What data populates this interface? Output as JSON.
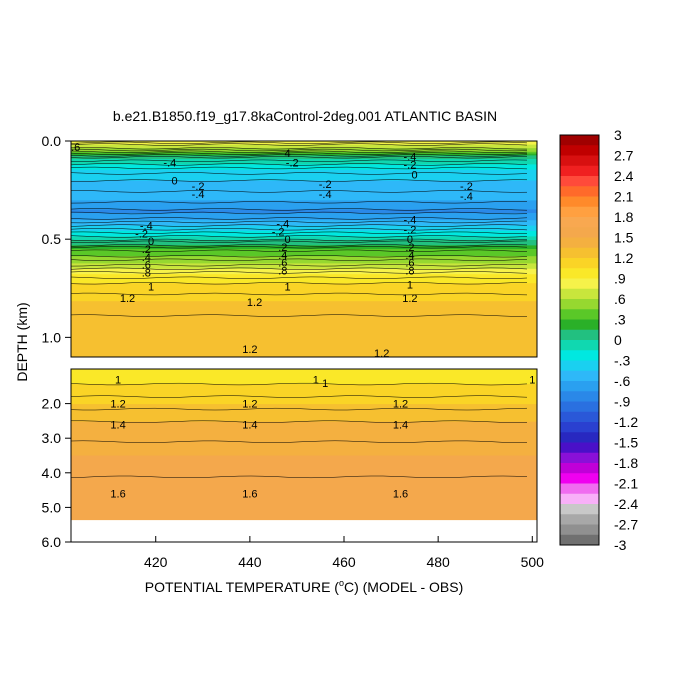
{
  "chart_data": {
    "type": "heatmap",
    "title": "b.e21.B1850.f19_g17.8kaControl-2deg.001 ATLANTIC BASIN",
    "xlabel_prefix": "POTENTIAL TEMPERATURE (",
    "xlabel_degree": "o",
    "xlabel_suffix": "C) (MODEL - OBS)",
    "ylabel": "DEPTH (km)",
    "grid": false,
    "x_range": [
      402,
      501
    ],
    "x_ticks": [
      {
        "value": 420,
        "label": "420"
      },
      {
        "value": 440,
        "label": "440"
      },
      {
        "value": 460,
        "label": "460"
      },
      {
        "value": 480,
        "label": "480"
      },
      {
        "value": 500,
        "label": "500"
      }
    ],
    "upper_panel": {
      "depth_range": [
        0.0,
        1.1
      ],
      "y_ticks": [
        {
          "value": 0.0,
          "label": "0.0"
        },
        {
          "value": 0.5,
          "label": "0.5"
        },
        {
          "value": 1.0,
          "label": "1.0"
        }
      ],
      "profile": [
        {
          "depth": 0.0,
          "value": 0.9
        },
        {
          "depth": 0.04,
          "value": 0.6
        },
        {
          "depth": 0.09,
          "value": 0.0
        },
        {
          "depth": 0.15,
          "value": -0.3
        },
        {
          "depth": 0.22,
          "value": -0.5
        },
        {
          "depth": 0.3,
          "value": -0.6
        },
        {
          "depth": 0.36,
          "value": -0.8
        },
        {
          "depth": 0.42,
          "value": -0.5
        },
        {
          "depth": 0.48,
          "value": -0.2
        },
        {
          "depth": 0.55,
          "value": 0.3
        },
        {
          "depth": 0.62,
          "value": 0.6
        },
        {
          "depth": 0.68,
          "value": 0.9
        },
        {
          "depth": 0.74,
          "value": 1.1
        },
        {
          "depth": 0.82,
          "value": 1.2
        },
        {
          "depth": 0.95,
          "value": 1.3
        },
        {
          "depth": 1.1,
          "value": 1.3
        }
      ],
      "contour_labels": [
        {
          "x": 403,
          "depth": 0.03,
          "text": ".6"
        },
        {
          "x": 423,
          "depth": 0.11,
          "text": "-.4"
        },
        {
          "x": 424,
          "depth": 0.2,
          "text": "0"
        },
        {
          "x": 429,
          "depth": 0.23,
          "text": "-.2"
        },
        {
          "x": 429,
          "depth": 0.27,
          "text": "-.4"
        },
        {
          "x": 448,
          "depth": 0.06,
          "text": "4"
        },
        {
          "x": 449,
          "depth": 0.11,
          "text": "-.2"
        },
        {
          "x": 456,
          "depth": 0.22,
          "text": "-.2"
        },
        {
          "x": 456,
          "depth": 0.27,
          "text": "-.4"
        },
        {
          "x": 474,
          "depth": 0.08,
          "text": "-.4"
        },
        {
          "x": 474,
          "depth": 0.12,
          "text": "-.2"
        },
        {
          "x": 475,
          "depth": 0.17,
          "text": "0"
        },
        {
          "x": 486,
          "depth": 0.23,
          "text": "-.2"
        },
        {
          "x": 486,
          "depth": 0.28,
          "text": "-.4"
        },
        {
          "x": 418,
          "depth": 0.43,
          "text": "-.4"
        },
        {
          "x": 417,
          "depth": 0.47,
          "text": "-.2"
        },
        {
          "x": 419,
          "depth": 0.51,
          "text": "0"
        },
        {
          "x": 418,
          "depth": 0.55,
          "text": ".2"
        },
        {
          "x": 418,
          "depth": 0.59,
          "text": ".4"
        },
        {
          "x": 418,
          "depth": 0.63,
          "text": ".6"
        },
        {
          "x": 418,
          "depth": 0.67,
          "text": ".8"
        },
        {
          "x": 419,
          "depth": 0.74,
          "text": "1"
        },
        {
          "x": 414,
          "depth": 0.8,
          "text": "1.2"
        },
        {
          "x": 447,
          "depth": 0.42,
          "text": "-.4"
        },
        {
          "x": 446,
          "depth": 0.46,
          "text": "-.2"
        },
        {
          "x": 448,
          "depth": 0.5,
          "text": "0"
        },
        {
          "x": 447,
          "depth": 0.54,
          "text": ".2"
        },
        {
          "x": 447,
          "depth": 0.58,
          "text": ".4"
        },
        {
          "x": 447,
          "depth": 0.62,
          "text": ".6"
        },
        {
          "x": 447,
          "depth": 0.66,
          "text": ".8"
        },
        {
          "x": 448,
          "depth": 0.74,
          "text": "1"
        },
        {
          "x": 441,
          "depth": 0.82,
          "text": "1.2"
        },
        {
          "x": 474,
          "depth": 0.4,
          "text": "-.4"
        },
        {
          "x": 474,
          "depth": 0.45,
          "text": "-.2"
        },
        {
          "x": 474,
          "depth": 0.5,
          "text": "0"
        },
        {
          "x": 474,
          "depth": 0.54,
          "text": ".2"
        },
        {
          "x": 474,
          "depth": 0.58,
          "text": ".4"
        },
        {
          "x": 474,
          "depth": 0.62,
          "text": ".6"
        },
        {
          "x": 474,
          "depth": 0.66,
          "text": ".8"
        },
        {
          "x": 474,
          "depth": 0.73,
          "text": "1"
        },
        {
          "x": 474,
          "depth": 0.8,
          "text": "1.2"
        },
        {
          "x": 440,
          "depth": 1.06,
          "text": "1.2"
        },
        {
          "x": 468,
          "depth": 1.08,
          "text": "1.2"
        }
      ]
    },
    "lower_panel": {
      "depth_range": [
        1.0,
        6.0
      ],
      "data_bottom_depth": 5.35,
      "y_ticks": [
        {
          "value": 2.0,
          "label": "2.0"
        },
        {
          "value": 3.0,
          "label": "3.0"
        },
        {
          "value": 4.0,
          "label": "4.0"
        },
        {
          "value": 5.0,
          "label": "5.0"
        },
        {
          "value": 6.0,
          "label": "6.0"
        }
      ],
      "profile": [
        {
          "depth": 1.05,
          "value": 0.95
        },
        {
          "depth": 1.3,
          "value": 1.0
        },
        {
          "depth": 1.6,
          "value": 1.1
        },
        {
          "depth": 2.0,
          "value": 1.2
        },
        {
          "depth": 2.7,
          "value": 1.4
        },
        {
          "depth": 3.5,
          "value": 1.5
        },
        {
          "depth": 4.7,
          "value": 1.6
        },
        {
          "depth": 5.35,
          "value": 1.65
        }
      ],
      "contour_labels": [
        {
          "x": 412,
          "depth": 1.3,
          "text": "1"
        },
        {
          "x": 454,
          "depth": 1.3,
          "text": "1"
        },
        {
          "x": 456,
          "depth": 1.4,
          "text": "1"
        },
        {
          "x": 500,
          "depth": 1.3,
          "text": "1"
        },
        {
          "x": 412,
          "depth": 2.0,
          "text": "1.2"
        },
        {
          "x": 440,
          "depth": 2.0,
          "text": "1.2"
        },
        {
          "x": 472,
          "depth": 2.0,
          "text": "1.2"
        },
        {
          "x": 412,
          "depth": 2.6,
          "text": "1.4"
        },
        {
          "x": 440,
          "depth": 2.6,
          "text": "1.4"
        },
        {
          "x": 472,
          "depth": 2.6,
          "text": "1.4"
        },
        {
          "x": 412,
          "depth": 4.6,
          "text": "1.6"
        },
        {
          "x": 440,
          "depth": 4.6,
          "text": "1.6"
        },
        {
          "x": 472,
          "depth": 4.6,
          "text": "1.6"
        }
      ]
    },
    "colorbar": {
      "labels": [
        "3",
        "2.7",
        "2.4",
        "2.1",
        "1.8",
        "1.5",
        "1.2",
        ".9",
        ".6",
        ".3",
        "0",
        "-.3",
        "-.6",
        "-.9",
        "-1.2",
        "-1.5",
        "-1.8",
        "-2.1",
        "-2.4",
        "-2.7",
        "-3"
      ],
      "levels": [
        3,
        2.7,
        2.4,
        2.1,
        1.8,
        1.5,
        1.2,
        0.9,
        0.6,
        0.3,
        0,
        -0.3,
        -0.6,
        -0.9,
        -1.2,
        -1.5,
        -1.8,
        -2.1,
        -2.4,
        -2.7,
        -3
      ],
      "colors": [
        "#a00000",
        "#c00000",
        "#d81010",
        "#f02020",
        "#ff4a3a",
        "#ff6a2a",
        "#ff8a2a",
        "#ffa040",
        "#f8a850",
        "#f4a84c",
        "#f4b040",
        "#f6c030",
        "#fad426",
        "#fae828",
        "#f6f24a",
        "#c8e63c",
        "#96d830",
        "#5ac828",
        "#2ab028",
        "#22c080",
        "#10d8b0",
        "#00e8e0",
        "#1ad0f0",
        "#2eb8f8",
        "#2aa0f0",
        "#2a88e8",
        "#2a70e0",
        "#2a58d8",
        "#2a40d0",
        "#2828c0",
        "#4a10c8",
        "#8a10d8",
        "#c000d8",
        "#f000f0",
        "#f06cf0",
        "#f8b0f8",
        "#c8c8c8",
        "#a8a8a8",
        "#909090",
        "#707070"
      ]
    }
  }
}
